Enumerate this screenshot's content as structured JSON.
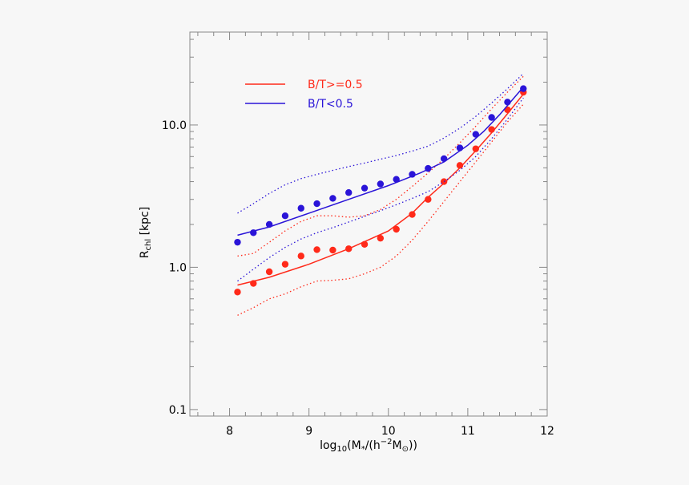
{
  "chart_data": {
    "type": "scatter",
    "xlabel": "log10(M*/(h^-2 M⊙))",
    "ylabel": "Rchl [kpc]",
    "xlim": [
      7.5,
      12
    ],
    "ylim": [
      0.09,
      45
    ],
    "yscale": "log",
    "x_ticks": [
      8,
      9,
      10,
      11,
      12
    ],
    "x_tick_labels": [
      "8",
      "9",
      "10",
      "11",
      "12"
    ],
    "y_ticks": [
      0.1,
      1.0,
      10.0
    ],
    "y_tick_labels": [
      "0.1",
      "1.0",
      "10.0"
    ],
    "legend_position": "top-left",
    "series": [
      {
        "name": "B/T>=0.5",
        "color": "#ff2a1a",
        "points_x": [
          8.1,
          8.3,
          8.5,
          8.7,
          8.9,
          9.1,
          9.3,
          9.5,
          9.7,
          9.9,
          10.1,
          10.3,
          10.5,
          10.7,
          10.9,
          11.1,
          11.3,
          11.5,
          11.7
        ],
        "points_y": [
          0.67,
          0.77,
          0.93,
          1.05,
          1.2,
          1.33,
          1.32,
          1.35,
          1.45,
          1.6,
          1.85,
          2.35,
          3.0,
          4.0,
          5.2,
          6.8,
          9.3,
          12.8,
          17.0
        ],
        "median_x": [
          8.1,
          8.5,
          9.0,
          9.5,
          10.0,
          10.3,
          10.5,
          10.7,
          10.9,
          11.1,
          11.3,
          11.5,
          11.7
        ],
        "median_y": [
          0.75,
          0.85,
          1.05,
          1.35,
          1.8,
          2.4,
          3.1,
          3.9,
          5.0,
          6.6,
          8.8,
          12.0,
          16.5
        ],
        "upper_x": [
          8.1,
          8.3,
          8.5,
          8.7,
          8.9,
          9.1,
          9.3,
          9.5,
          9.7,
          9.9,
          10.1,
          10.3,
          10.5,
          10.7,
          10.9,
          11.1,
          11.3,
          11.5,
          11.7
        ],
        "upper_y": [
          1.2,
          1.25,
          1.5,
          1.8,
          2.1,
          2.3,
          2.3,
          2.25,
          2.3,
          2.55,
          3.0,
          3.7,
          4.6,
          5.8,
          7.5,
          9.8,
          13.0,
          17.0,
          22.0
        ],
        "lower_x": [
          8.1,
          8.3,
          8.5,
          8.7,
          8.9,
          9.1,
          9.3,
          9.5,
          9.7,
          9.9,
          10.1,
          10.3,
          10.5,
          10.7,
          10.9,
          11.1,
          11.3,
          11.5,
          11.7
        ],
        "lower_y": [
          0.46,
          0.52,
          0.6,
          0.65,
          0.73,
          0.8,
          0.81,
          0.83,
          0.9,
          1.0,
          1.2,
          1.55,
          2.1,
          2.9,
          4.0,
          5.5,
          7.6,
          10.5,
          14.0
        ]
      },
      {
        "name": "B/T<0.5",
        "color": "#2a14d8",
        "points_x": [
          8.1,
          8.3,
          8.5,
          8.7,
          8.9,
          9.1,
          9.3,
          9.5,
          9.7,
          9.9,
          10.1,
          10.3,
          10.5,
          10.7,
          10.9,
          11.1,
          11.3,
          11.5,
          11.7
        ],
        "points_y": [
          1.5,
          1.75,
          2.0,
          2.3,
          2.6,
          2.8,
          3.05,
          3.35,
          3.6,
          3.85,
          4.15,
          4.5,
          4.95,
          5.8,
          6.9,
          8.6,
          11.3,
          14.5,
          18.0
        ],
        "median_x": [
          8.1,
          8.5,
          9.0,
          9.5,
          10.0,
          10.4,
          10.7,
          11.0,
          11.2,
          11.4,
          11.7
        ],
        "median_y": [
          1.68,
          1.92,
          2.4,
          3.0,
          3.75,
          4.6,
          5.5,
          7.2,
          9.0,
          11.8,
          18.5
        ],
        "upper_x": [
          8.1,
          8.3,
          8.5,
          8.7,
          8.9,
          9.1,
          9.3,
          9.5,
          9.7,
          9.9,
          10.1,
          10.3,
          10.5,
          10.7,
          10.9,
          11.1,
          11.3,
          11.5,
          11.7
        ],
        "upper_y": [
          2.4,
          2.8,
          3.3,
          3.8,
          4.2,
          4.5,
          4.8,
          5.1,
          5.4,
          5.75,
          6.1,
          6.55,
          7.1,
          8.1,
          9.5,
          11.5,
          14.3,
          18.0,
          23.0
        ],
        "lower_x": [
          8.1,
          8.3,
          8.5,
          8.7,
          8.9,
          9.1,
          9.3,
          9.5,
          9.7,
          9.9,
          10.1,
          10.3,
          10.5,
          10.7,
          10.9,
          11.1,
          11.3,
          11.5,
          11.7
        ],
        "lower_y": [
          0.8,
          0.97,
          1.17,
          1.38,
          1.58,
          1.75,
          1.9,
          2.08,
          2.28,
          2.5,
          2.75,
          3.05,
          3.4,
          4.0,
          4.8,
          6.0,
          8.0,
          11.0,
          15.5
        ]
      }
    ]
  }
}
